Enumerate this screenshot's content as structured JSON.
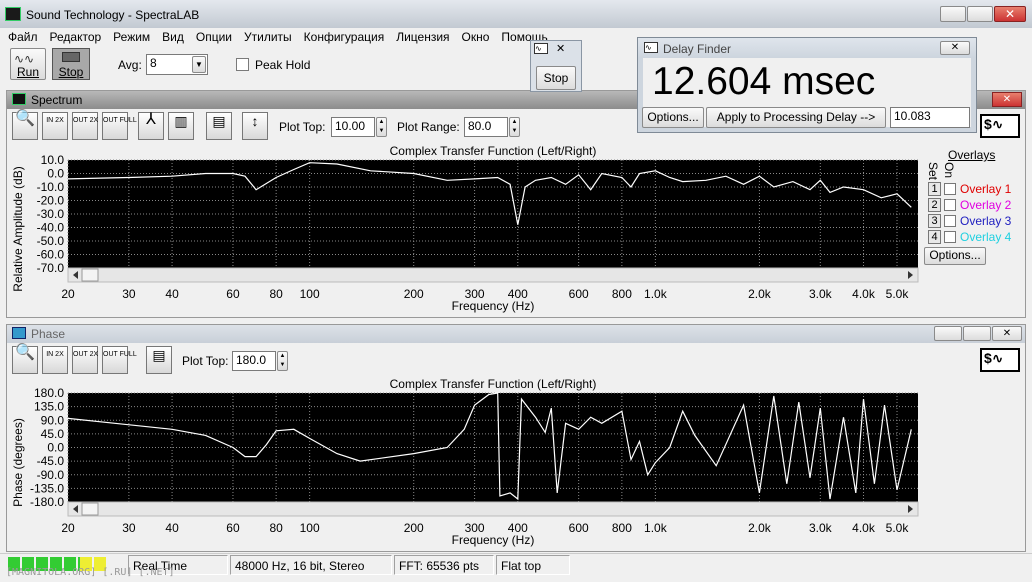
{
  "window": {
    "title": "Sound Technology - SpectraLAB"
  },
  "menu": [
    "Файл",
    "Редактор",
    "Режим",
    "Вид",
    "Опции",
    "Утилиты",
    "Конфигурация",
    "Лицензия",
    "Окно",
    "Помощь"
  ],
  "toolbar": {
    "run": "Run",
    "stop": "Stop",
    "avg_label": "Avg:",
    "avg_value": "8",
    "peak_hold": "Peak Hold"
  },
  "stop_window": {
    "button": "Stop"
  },
  "delay_finder": {
    "title": "Delay Finder",
    "reading": "12.604 msec",
    "options": "Options...",
    "apply": "Apply to Processing Delay -->",
    "delay_value": "10.083"
  },
  "spectrum": {
    "title": "Spectrum",
    "plot_top_label": "Plot Top:",
    "plot_top": "10.00",
    "plot_range_label": "Plot Range:",
    "plot_range": "80.0",
    "overlays": {
      "title": "Overlays",
      "set_label": "Set",
      "on_label": "On",
      "options": "Options...",
      "items": [
        {
          "number": "1",
          "label": "Overlay 1",
          "color": "#e00000"
        },
        {
          "number": "2",
          "label": "Overlay 2",
          "color": "#e000e0"
        },
        {
          "number": "3",
          "label": "Overlay 3",
          "color": "#2020c0"
        },
        {
          "number": "4",
          "label": "Overlay 4",
          "color": "#20d0e0"
        }
      ]
    },
    "chart": {
      "type": "line",
      "title": "Complex Transfer Function (Left/Right)",
      "x_label": "Frequency (Hz)",
      "y_label": "Relative Amplitude (dB)",
      "color": "#ffffff",
      "xscale": "log",
      "grid": true,
      "xlim": [
        20,
        5750
      ],
      "ylim": [
        -70,
        10
      ],
      "yticks": [
        {
          "value": 10,
          "label": "10.0"
        },
        {
          "value": 0,
          "label": "0.0"
        },
        {
          "value": -10,
          "label": "-10.0"
        },
        {
          "value": -20,
          "label": "-20.0"
        },
        {
          "value": -30,
          "label": "-30.0"
        },
        {
          "value": -40,
          "label": "-40.0"
        },
        {
          "value": -50,
          "label": "-50.0"
        },
        {
          "value": -60,
          "label": "-60.0"
        },
        {
          "value": -70,
          "label": "-70.0"
        }
      ],
      "xticks": [
        20,
        30,
        40,
        60,
        80,
        100,
        200,
        300,
        400,
        600,
        800,
        {
          "value": 1000,
          "label": "1.0k"
        },
        {
          "value": 2000,
          "label": "2.0k"
        },
        {
          "value": 3000,
          "label": "3.0k"
        },
        {
          "value": 4000,
          "label": "4.0k"
        },
        {
          "value": 5000,
          "label": "5.0k"
        }
      ],
      "x": [
        20,
        30,
        40,
        50,
        60,
        65,
        70,
        80,
        90,
        100,
        120,
        150,
        200,
        250,
        300,
        350,
        380,
        400,
        420,
        450,
        500,
        550,
        600,
        650,
        700,
        800,
        850,
        900,
        1000,
        1100,
        1200,
        1400,
        1600,
        1800,
        2000,
        2200,
        2500,
        2800,
        3000,
        3200,
        3500,
        4000,
        4500,
        5000,
        5500
      ],
      "values": [
        -4,
        -3,
        -2,
        0,
        0,
        -2,
        -12,
        -3,
        3,
        8,
        7,
        2,
        0,
        -5,
        -4,
        -3,
        -8,
        -38,
        -10,
        -5,
        -3,
        -8,
        -1,
        -12,
        0,
        -3,
        -10,
        0,
        2,
        -3,
        -6,
        -5,
        -2,
        -8,
        -2,
        -10,
        -6,
        -12,
        -5,
        -14,
        -10,
        -12,
        -18,
        -15,
        -25
      ]
    }
  },
  "phase": {
    "title": "Phase",
    "plot_top_label": "Plot Top:",
    "plot_top": "180.0",
    "chart": {
      "type": "line",
      "title": "Complex Transfer Function (Left/Right)",
      "x_label": "Frequency (Hz)",
      "y_label": "Phase (degrees)",
      "color": "#ffffff",
      "xscale": "log",
      "grid": true,
      "xlim": [
        20,
        5750
      ],
      "ylim": [
        -180,
        180
      ],
      "yticks": [
        {
          "value": 180,
          "label": "180.0"
        },
        {
          "value": 135,
          "label": "135.0"
        },
        {
          "value": 90,
          "label": "90.0"
        },
        {
          "value": 45,
          "label": "45.0"
        },
        {
          "value": 0,
          "label": "0.0"
        },
        {
          "value": -45,
          "label": "-45.0"
        },
        {
          "value": -90,
          "label": "-90.0"
        },
        {
          "value": -135,
          "label": "-135.0"
        },
        {
          "value": -180,
          "label": "-180.0"
        }
      ],
      "xticks": [
        20,
        30,
        40,
        60,
        80,
        100,
        200,
        300,
        400,
        600,
        800,
        {
          "value": 1000,
          "label": "1.0k"
        },
        {
          "value": 2000,
          "label": "2.0k"
        },
        {
          "value": 3000,
          "label": "3.0k"
        },
        {
          "value": 4000,
          "label": "4.0k"
        },
        {
          "value": 5000,
          "label": "5.0k"
        }
      ],
      "x": [
        20,
        40,
        50,
        60,
        65,
        70,
        75,
        80,
        90,
        100,
        120,
        140,
        200,
        250,
        280,
        300,
        330,
        350,
        355,
        380,
        400,
        410,
        450,
        480,
        500,
        520,
        550,
        600,
        650,
        700,
        800,
        850,
        900,
        950,
        1000,
        1100,
        1200,
        1300,
        1500,
        1800,
        2000,
        2200,
        2400,
        2600,
        2800,
        3000,
        3200,
        3500,
        3800,
        4000,
        4300,
        4600,
        5000,
        5500
      ],
      "values": [
        96,
        60,
        40,
        0,
        -30,
        -30,
        10,
        55,
        60,
        30,
        -20,
        -45,
        -20,
        0,
        60,
        140,
        175,
        180,
        -160,
        -150,
        -170,
        160,
        100,
        50,
        130,
        -150,
        80,
        60,
        100,
        80,
        120,
        -40,
        20,
        -90,
        -50,
        0,
        120,
        40,
        -60,
        140,
        -150,
        170,
        -120,
        150,
        -100,
        130,
        -170,
        100,
        -150,
        160,
        -120,
        140,
        -140,
        60
      ]
    }
  },
  "icons": {
    "zoom_in": "IN 2X",
    "zoom_out": "OUT 2X",
    "zoom_full": "OUT FULL"
  },
  "status_bar": {
    "mode": "Real Time",
    "format": "48000 Hz, 16 bit, Stereo",
    "fft": "FFT: 65536 pts",
    "window": "Flat top"
  },
  "watermark": "[MAGNITOLA.ORG] [.RU] [.NET]"
}
